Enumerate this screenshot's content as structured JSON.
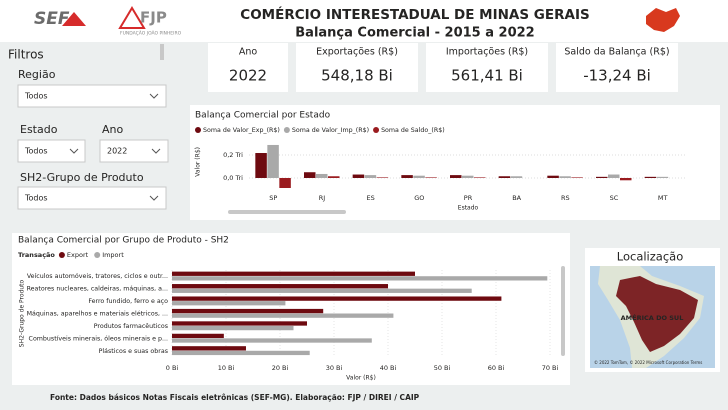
{
  "header": {
    "logo_sef": "SEF",
    "logo_fjp": "FJP",
    "logo_fjp_caption": "FUNDAÇÃO JOÃO PINHEIRO",
    "title": "COMÉRCIO INTERESTADUAL DE MINAS GERAIS",
    "subtitle": "Balança Comercial - 2015 a 2022"
  },
  "filters": {
    "title": "Filtros",
    "regiao": {
      "label": "Região",
      "value": "Todos"
    },
    "estado": {
      "label": "Estado",
      "value": "Todos"
    },
    "ano": {
      "label": "Ano",
      "value": "2022"
    },
    "grupo": {
      "label": "SH2-Grupo de Produto",
      "value": "Todos"
    }
  },
  "kpis": [
    {
      "label": "Ano",
      "value": "2022"
    },
    {
      "label": "Exportações (R$)",
      "value": "548,18 Bi"
    },
    {
      "label": "Importações (R$)",
      "value": "561,41 Bi"
    },
    {
      "label": "Saldo da Balança (R$)",
      "value": "-13,24 Bi"
    }
  ],
  "chart_data": [
    {
      "type": "bar",
      "title": "Balança Comercial por Estado",
      "x_label": "Estado",
      "y_label": "Valor (R$)",
      "categories": [
        "SP",
        "RJ",
        "ES",
        "GO",
        "PR",
        "BA",
        "RS",
        "SC",
        "MT"
      ],
      "series": [
        {
          "name": "Soma de Valor_Exp_(R$)",
          "color": "#6e0a10",
          "values": [
            0.217,
            0.05,
            0.03,
            0.025,
            0.025,
            0.015,
            0.02,
            0.01,
            0.01
          ]
        },
        {
          "name": "Soma de Valor_Imp_(R$)",
          "color": "#a9a9a9",
          "values": [
            0.287,
            0.035,
            0.025,
            0.02,
            0.02,
            0.015,
            0.015,
            0.03,
            0.01
          ]
        },
        {
          "name": "Soma de Saldo_(R$)",
          "color": "#9a1b1f",
          "values": [
            -0.087,
            0.015,
            0.005,
            0.005,
            0.005,
            0,
            0.005,
            -0.02,
            0
          ]
        }
      ],
      "ylim": [
        -0.15,
        0.43
      ],
      "yticks": [
        {
          "value": 0,
          "label": "0,0 Tri"
        },
        {
          "value": 0.2,
          "label": "0,2 Tri"
        }
      ],
      "grid": true,
      "legend": "top"
    },
    {
      "type": "hbar",
      "title": "Balança Comercial por Grupo de Produto - SH2",
      "legend_title": "Transação",
      "x_label": "Valor (R$)",
      "y_label": "SH2-Grupo de Produto",
      "categories": [
        "Veículos automóveis, tratores, ciclos e outr...",
        "Reatores nucleares, caldeiras, máquinas, a...",
        "Ferro fundido, ferro e aço",
        "Máquinas, aparelhos e materiais elétricos, ...",
        "Produtos farmacêuticos",
        "Combustíveis minerais, óleos minerais e p...",
        "Plásticos e suas obras"
      ],
      "series": [
        {
          "name": "Export",
          "color": "#6e0a10",
          "values": [
            45,
            40,
            61,
            28,
            25,
            9.6,
            13.7
          ]
        },
        {
          "name": "Import",
          "color": "#a9a9a9",
          "values": [
            69.5,
            55.5,
            21,
            41,
            22.5,
            37,
            25.5
          ]
        }
      ],
      "xlim": [
        0,
        70
      ],
      "xticks": [
        {
          "value": 0,
          "label": "0 Bi"
        },
        {
          "value": 10,
          "label": "10 Bi"
        },
        {
          "value": 20,
          "label": "20 Bi"
        },
        {
          "value": 30,
          "label": "30 Bi"
        },
        {
          "value": 40,
          "label": "40 Bi"
        },
        {
          "value": 50,
          "label": "50 Bi"
        },
        {
          "value": 60,
          "label": "60 Bi"
        },
        {
          "value": 70,
          "label": "70 Bi"
        }
      ],
      "legend": "top-left"
    }
  ],
  "map": {
    "title": "Localização",
    "label": "AMÉRICA DO SUL",
    "attribution": "© 2022 TomTom, © 2022 Microsoft Corporation  Terms"
  },
  "footer": "Fonte: Dados básicos Notas Fiscais eletrônicas (SEF-MG). Elaboração: FJP / DIREI / CAIP"
}
